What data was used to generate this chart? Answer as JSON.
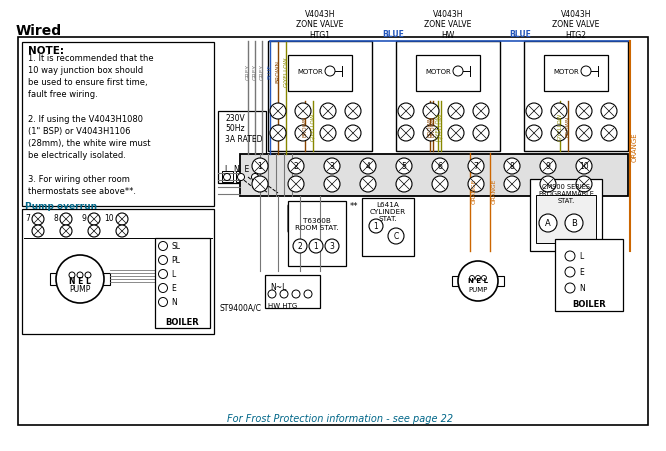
{
  "title": "Wired",
  "bg": "#ffffff",
  "black": "#000000",
  "grey": "#777777",
  "blue": "#2255bb",
  "brown": "#884400",
  "gyellow": "#888800",
  "orange": "#cc6600",
  "teal": "#006688",
  "note_lines": [
    "NOTE:",
    "1. It is recommended that the",
    "10 way junction box should",
    "be used to ensure first time,",
    "fault free wiring.",
    " ",
    "2. If using the V4043H1080",
    "(1\" BSP) or V4043H1106",
    "(28mm), the white wire must",
    "be electrically isolated.",
    " ",
    "3. For wiring other room",
    "thermostats see above**."
  ],
  "footer": "For Frost Protection information - see page 22",
  "zone_titles": [
    "V4043H\nZONE VALVE\nHTG1",
    "V4043H\nZONE VALVE\nHW",
    "V4043H\nZONE VALVE\nHTG2"
  ]
}
